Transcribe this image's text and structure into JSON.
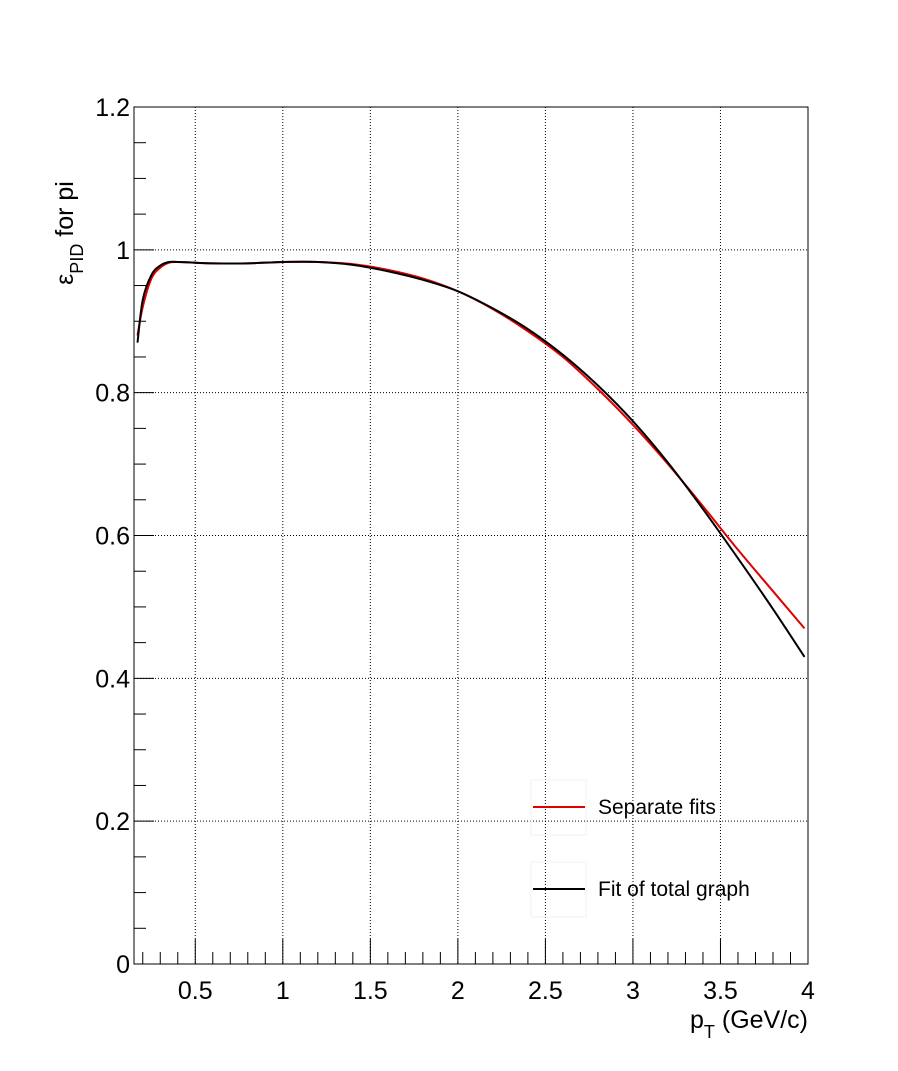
{
  "chart_data": {
    "type": "line",
    "title": "",
    "xlabel": {
      "main": "p",
      "sub": "T",
      "tail": " (GeV/c)"
    },
    "ylabel": {
      "main": "ε",
      "sub": "PID",
      "tail": " for pi"
    },
    "xlim": [
      0.15,
      4.0
    ],
    "ylim": [
      0,
      1.2
    ],
    "grid": true,
    "legend_position": "bottom-right",
    "x_major_ticks": [
      0.5,
      1,
      1.5,
      2,
      2.5,
      3,
      3.5,
      4
    ],
    "x_tick_labels": [
      "0.5",
      "1",
      "1.5",
      "2",
      "2.5",
      "3",
      "3.5",
      "4"
    ],
    "x_minor_step": 0.1,
    "y_major_ticks": [
      0,
      0.2,
      0.4,
      0.6,
      0.8,
      1,
      1.2
    ],
    "y_tick_labels": [
      "0",
      "0.2",
      "0.4",
      "0.6",
      "0.8",
      "1",
      "1.2"
    ],
    "y_minor_step": 0.05,
    "series": [
      {
        "name": "Separate fits",
        "color": "#e00000",
        "x": [
          0.17,
          0.2,
          0.25,
          0.3,
          0.35,
          0.4,
          0.5,
          0.6,
          0.8,
          1.0,
          1.2,
          1.4,
          1.6,
          1.8,
          2.0,
          2.2,
          2.4,
          2.6,
          2.8,
          3.0,
          3.2,
          3.4,
          3.6,
          3.8,
          3.98
        ],
        "y": [
          0.88,
          0.92,
          0.96,
          0.975,
          0.982,
          0.983,
          0.982,
          0.981,
          0.981,
          0.983,
          0.983,
          0.98,
          0.972,
          0.96,
          0.942,
          0.917,
          0.886,
          0.85,
          0.805,
          0.755,
          0.7,
          0.641,
          0.58,
          0.522,
          0.47
        ]
      },
      {
        "name": "Fit of total graph",
        "color": "#000000",
        "x": [
          0.17,
          0.2,
          0.25,
          0.3,
          0.35,
          0.4,
          0.5,
          0.6,
          0.8,
          1.0,
          1.2,
          1.4,
          1.6,
          1.8,
          2.0,
          2.2,
          2.4,
          2.6,
          2.8,
          3.0,
          3.2,
          3.4,
          3.6,
          3.8,
          3.98
        ],
        "y": [
          0.87,
          0.93,
          0.965,
          0.978,
          0.983,
          0.983,
          0.982,
          0.981,
          0.981,
          0.983,
          0.983,
          0.979,
          0.97,
          0.958,
          0.942,
          0.918,
          0.889,
          0.853,
          0.81,
          0.76,
          0.702,
          0.637,
          0.568,
          0.497,
          0.43
        ]
      }
    ]
  }
}
